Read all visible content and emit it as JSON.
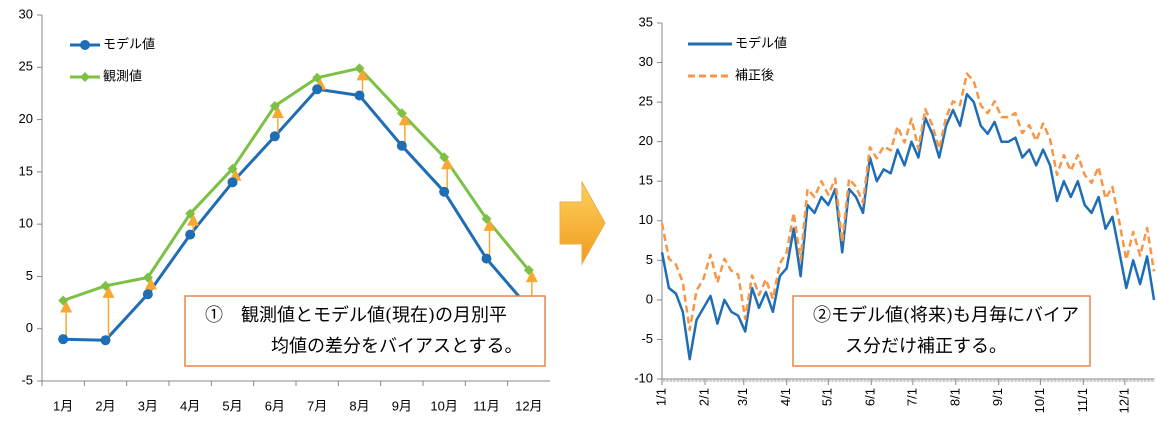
{
  "chart_data": [
    {
      "type": "line",
      "categories": [
        "1月",
        "2月",
        "3月",
        "4月",
        "5月",
        "6月",
        "7月",
        "8月",
        "9月",
        "10月",
        "11月",
        "12月"
      ],
      "series": [
        {
          "name": "モデル値",
          "color": "#1f6db4",
          "marker": "circle",
          "values": [
            -1.0,
            -1.1,
            3.3,
            9.0,
            14.0,
            18.4,
            22.9,
            22.3,
            17.5,
            13.1,
            6.7,
            2.0
          ]
        },
        {
          "name": "観測値",
          "color": "#7cc144",
          "marker": "diamond",
          "values": [
            2.7,
            4.1,
            4.9,
            11.0,
            15.3,
            21.3,
            24.0,
            24.9,
            20.6,
            16.4,
            10.5,
            5.6
          ]
        }
      ],
      "bias_arrow_color": "#f7a833",
      "ylim": [
        -5,
        30
      ],
      "yticks": [
        -5,
        0,
        5,
        10,
        15,
        20,
        25,
        30
      ],
      "annotation": [
        "①　観測値とモデル値(現在)の月別平",
        "均値の差分をバイアスとする。"
      ]
    },
    {
      "type": "line",
      "x": [
        0,
        5,
        10,
        15,
        20,
        25,
        30,
        35,
        40,
        45,
        50,
        55,
        60,
        65,
        70,
        75,
        80,
        85,
        90,
        95,
        100,
        105,
        110,
        115,
        120,
        125,
        130,
        135,
        140,
        145,
        150,
        155,
        160,
        165,
        170,
        175,
        180,
        185,
        190,
        195,
        200,
        205,
        210,
        215,
        220,
        225,
        230,
        235,
        240,
        245,
        250,
        255,
        260,
        265,
        270,
        275,
        280,
        285,
        290,
        295,
        300,
        305,
        310,
        315,
        320,
        325,
        330,
        335,
        340,
        345,
        350,
        355
      ],
      "series": [
        {
          "name": "モデル値",
          "color": "#1f6db4",
          "dash": false,
          "values": [
            6,
            1.5,
            0.8,
            -1.5,
            -7.5,
            -2.5,
            -1,
            0.5,
            -3,
            0,
            -1.5,
            -2,
            -4,
            1.5,
            -1,
            1,
            -1.5,
            3,
            4,
            9,
            3,
            12,
            11,
            13,
            12,
            14,
            6,
            14,
            13,
            11,
            18,
            15,
            16.5,
            16,
            19,
            17,
            20,
            18,
            23,
            21,
            18,
            22,
            24,
            22,
            26,
            25,
            22,
            21,
            22.5,
            20,
            20,
            20.5,
            18,
            19,
            17,
            19,
            17,
            12.5,
            15,
            13,
            15,
            12,
            11,
            13,
            9,
            10.5,
            6,
            1.5,
            5,
            2,
            5.5,
            0
          ]
        },
        {
          "name": "補正後",
          "color": "#f79646",
          "dash": true,
          "values": [
            9.7,
            5.2,
            4.5,
            2.2,
            -3.8,
            1.2,
            2.7,
            5.7,
            2.2,
            5.2,
            3.7,
            3.2,
            -2.4,
            3.1,
            0.6,
            2.6,
            0.1,
            4.6,
            6,
            11,
            5,
            14,
            13,
            15,
            13.3,
            15.3,
            7.3,
            15.3,
            14.3,
            12.3,
            19.3,
            17.9,
            19.4,
            18.9,
            21.9,
            19.9,
            22.9,
            19.1,
            24.1,
            22.1,
            19.1,
            23.1,
            25.1,
            24.6,
            28.6,
            27.6,
            24.6,
            23.6,
            25.1,
            23.1,
            23.1,
            23.6,
            21.1,
            22.1,
            20.1,
            22.3,
            20.3,
            15.8,
            18.3,
            16.3,
            18.3,
            15.8,
            14.8,
            16.8,
            12.8,
            14.3,
            9.8,
            5.1,
            8.6,
            5.6,
            9.1,
            3.6
          ]
        }
      ],
      "xlim": [
        0,
        355
      ],
      "xticks": [
        {
          "value": 0,
          "label": "1/1"
        },
        {
          "value": 31,
          "label": "2/1"
        },
        {
          "value": 59,
          "label": "3/1"
        },
        {
          "value": 90,
          "label": "4/1"
        },
        {
          "value": 120,
          "label": "5/1"
        },
        {
          "value": 151,
          "label": "6/1"
        },
        {
          "value": 181,
          "label": "7/1"
        },
        {
          "value": 212,
          "label": "8/1"
        },
        {
          "value": 243,
          "label": "9/1"
        },
        {
          "value": 273,
          "label": "10/1"
        },
        {
          "value": 304,
          "label": "11/1"
        },
        {
          "value": 334,
          "label": "12/1"
        }
      ],
      "ylim": [
        -10,
        35
      ],
      "yticks": [
        -10,
        -5,
        0,
        5,
        10,
        15,
        20,
        25,
        30,
        35
      ],
      "annotation": [
        "②モデル値(将来)も月毎にバイア",
        "ス分だけ補正する。"
      ]
    }
  ]
}
